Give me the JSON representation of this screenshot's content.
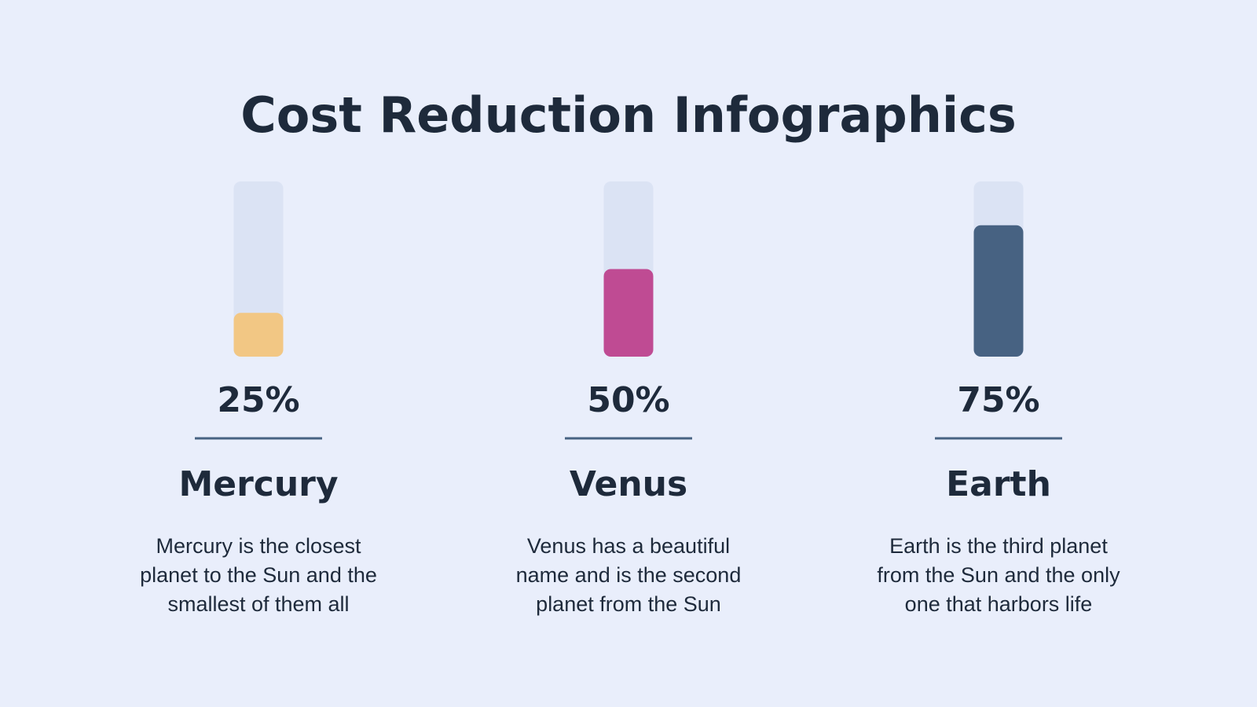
{
  "chart_data": {
    "type": "bar",
    "title": "Cost Reduction Infographics",
    "categories": [
      "Mercury",
      "Venus",
      "Earth"
    ],
    "values": [
      25,
      50,
      75
    ],
    "value_labels": [
      "25%",
      "50%",
      "75%"
    ],
    "colors": [
      "#f2c784",
      "#bf4b93",
      "#476282"
    ],
    "track_color": "#dbe3f4",
    "ylim": [
      0,
      100
    ],
    "descriptions": [
      [
        "Mercury is the closest",
        "planet to the Sun and the",
        "smallest of them all"
      ],
      [
        "Venus has a beautiful",
        "name and is the second",
        "planet from the Sun"
      ],
      [
        "Earth is the third planet",
        "from the Sun and the only",
        "one that harbors life"
      ]
    ]
  }
}
